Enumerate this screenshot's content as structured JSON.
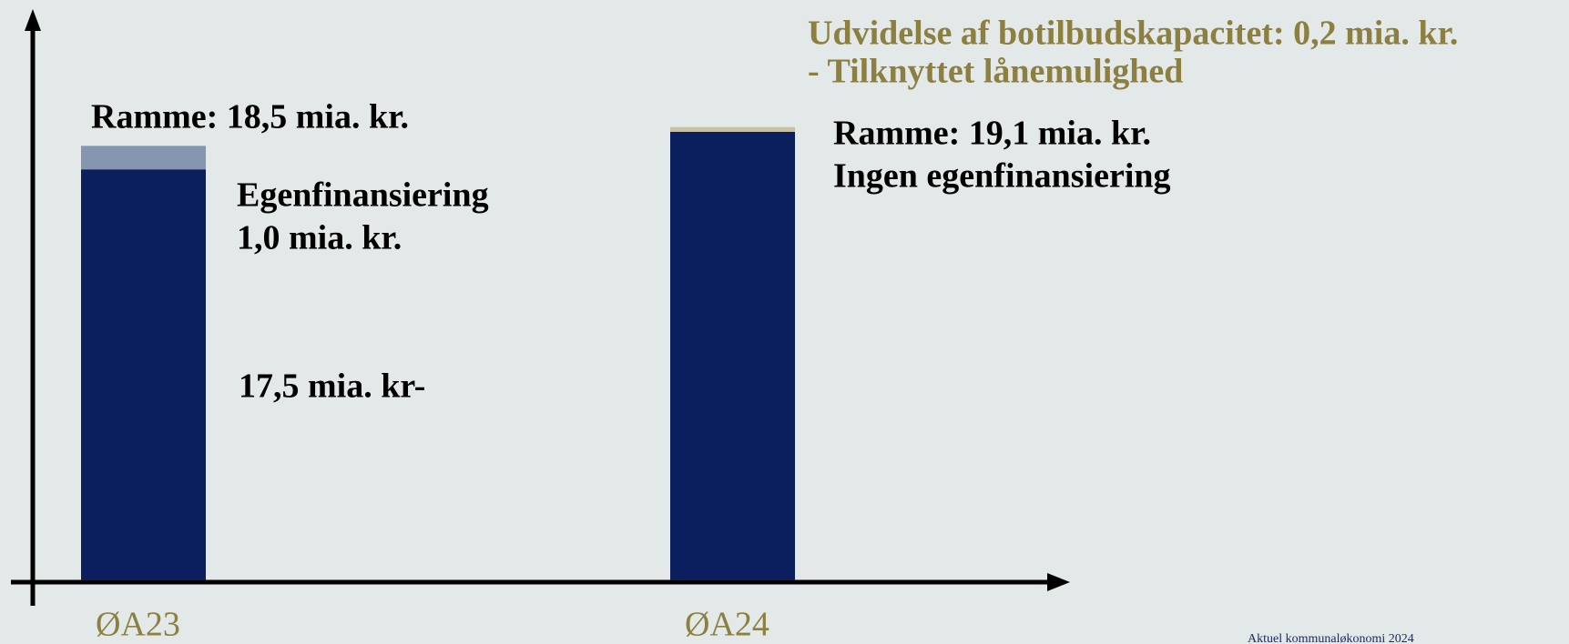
{
  "chart_data": {
    "type": "stacked_bar",
    "categories": [
      "ØA23",
      "ØA24"
    ],
    "series": [
      {
        "color": "#0b1f5e",
        "values": [
          17.5,
          19.1
        ]
      },
      {
        "color": "#8696b1",
        "values": [
          1.0,
          null
        ]
      },
      {
        "color": "#c5c1a3",
        "values": [
          null,
          0.2
        ]
      }
    ],
    "ylim": [
      0,
      22
    ],
    "annotations": [
      "Ramme: 18,5 mia. kr.",
      "Egenfinansiering",
      "1,0 mia. kr.",
      "17,5 mia. kr-",
      "Udvidelse af botilbudskapacitet: 0,2 mia. kr.",
      "- Tilknyttet lånemulighed",
      "Ramme: 19,1 mia. kr.",
      "Ingen egenfinansiering"
    ],
    "source": "Aktuel kommunaløkonomi 2024"
  }
}
